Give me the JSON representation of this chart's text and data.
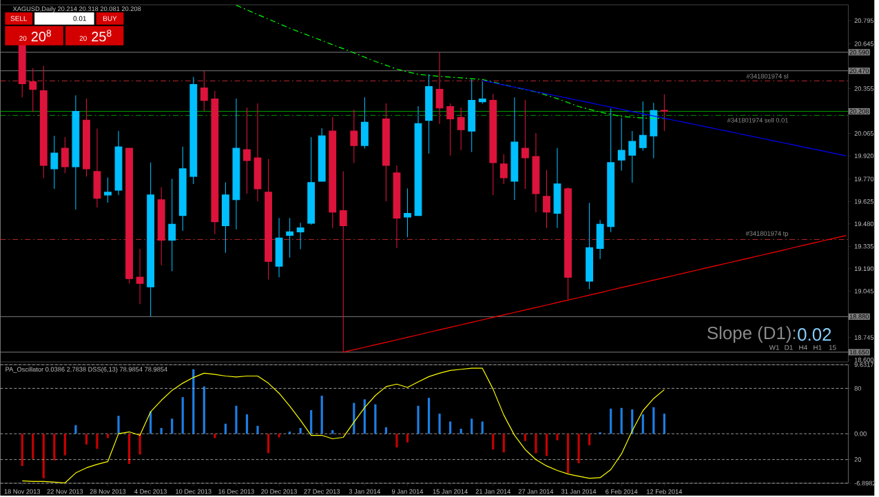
{
  "chart_data": [
    {
      "type": "candlestick",
      "title": "XAGUSD,Daily  20.214 20.318 20.081 20.208",
      "categories": [
        null,
        null,
        null,
        null,
        null,
        null,
        null,
        null,
        null,
        null,
        null,
        null,
        null,
        null,
        null,
        null,
        null,
        null,
        null,
        null,
        null,
        null,
        null,
        null,
        null,
        null,
        null,
        null,
        null,
        null,
        null,
        null,
        null,
        null,
        null,
        null,
        null,
        null,
        null,
        null,
        null,
        null,
        null,
        null,
        null,
        null,
        null,
        null,
        null,
        null,
        null,
        null,
        null,
        null,
        null,
        null,
        null,
        null,
        null,
        null,
        null,
        null,
        null,
        null,
        null,
        null,
        null,
        null,
        null,
        null,
        null,
        null,
        null,
        null,
        null,
        null,
        null,
        null
      ],
      "ohlc": [
        [
          20.64,
          20.64,
          20.298,
          20.387
        ],
        [
          20.399,
          20.488,
          20.204,
          20.35
        ],
        [
          20.341,
          20.502,
          19.777,
          19.858
        ],
        [
          19.836,
          20.05,
          19.706,
          19.938
        ],
        [
          19.969,
          20.041,
          19.808,
          19.849
        ],
        [
          19.849,
          20.312,
          19.573,
          20.208
        ],
        [
          20.151,
          20.29,
          19.786,
          19.836
        ],
        [
          19.818,
          20.097,
          19.586,
          19.645
        ],
        [
          19.667,
          19.78,
          19.617,
          19.685
        ],
        [
          19.698,
          20.081,
          19.666,
          19.978
        ],
        [
          19.969,
          19.969,
          19.094,
          19.126
        ],
        [
          19.135,
          19.318,
          18.961,
          19.095
        ],
        [
          19.073,
          19.877,
          18.881,
          19.667
        ],
        [
          19.636,
          19.718,
          19.213,
          19.375
        ],
        [
          19.375,
          19.771,
          19.174,
          19.477
        ],
        [
          19.534,
          19.979,
          19.435,
          19.836
        ],
        [
          19.787,
          20.431,
          19.737,
          20.381
        ],
        [
          20.359,
          20.47,
          20.21,
          20.279
        ],
        [
          20.288,
          20.341,
          19.413,
          19.494
        ],
        [
          19.468,
          19.749,
          19.293,
          19.667
        ],
        [
          19.636,
          20.29,
          19.444,
          19.969
        ],
        [
          19.96,
          20.232,
          19.675,
          19.889
        ],
        [
          19.907,
          20.259,
          19.626,
          19.707
        ],
        [
          19.685,
          19.899,
          19.12,
          19.237
        ],
        [
          19.206,
          19.518,
          19.135,
          19.388
        ],
        [
          19.406,
          19.518,
          19.262,
          19.428
        ],
        [
          19.428,
          19.487,
          19.316,
          19.454
        ],
        [
          19.484,
          20.041,
          19.475,
          19.747
        ],
        [
          19.756,
          20.099,
          19.756,
          20.049
        ],
        [
          20.08,
          20.17,
          19.453,
          19.556
        ],
        [
          19.565,
          19.82,
          18.65,
          19.468
        ],
        [
          20.08,
          20.219,
          19.874,
          19.987
        ],
        [
          19.987,
          20.298,
          19.967,
          20.137
        ],
        null,
        [
          20.159,
          20.259,
          19.626,
          19.858
        ],
        [
          19.809,
          19.859,
          19.323,
          19.517
        ],
        [
          19.524,
          19.709,
          19.394,
          19.548
        ],
        [
          19.534,
          20.241,
          19.534,
          20.128
        ],
        [
          20.149,
          20.449,
          19.935,
          20.368
        ],
        [
          20.35,
          20.59,
          20.127,
          20.229
        ],
        [
          20.239,
          20.259,
          19.922,
          20.159
        ],
        [
          20.168,
          20.232,
          19.957,
          20.089
        ],
        [
          20.08,
          20.414,
          19.945,
          20.279
        ],
        [
          20.27,
          20.4,
          20.257,
          20.288
        ],
        [
          20.279,
          20.321,
          19.666,
          19.876
        ],
        [
          19.867,
          19.93,
          19.737,
          19.778
        ],
        [
          19.756,
          20.298,
          19.635,
          20.009
        ],
        [
          19.969,
          20.281,
          19.706,
          19.907
        ],
        [
          19.916,
          20.068,
          19.555,
          19.676
        ],
        [
          19.658,
          19.828,
          19.453,
          19.556
        ],
        [
          19.548,
          19.97,
          19.453,
          19.738
        ],
        [
          19.707,
          19.716,
          18.992,
          19.135
        ],
        null,
        [
          19.109,
          19.616,
          19.058,
          19.326
        ],
        [
          19.321,
          19.505,
          19.253,
          19.477
        ],
        [
          19.463,
          20.227,
          19.426,
          19.876
        ],
        [
          19.893,
          20.164,
          19.825,
          19.956
        ],
        [
          19.924,
          20.081,
          19.746,
          20.013
        ],
        [
          19.973,
          20.272,
          19.954,
          20.053
        ],
        [
          20.049,
          20.263,
          19.905,
          20.213
        ],
        [
          20.214,
          20.318,
          20.081,
          20.208
        ],
        null,
        null,
        null,
        null,
        null,
        null,
        null,
        null,
        null,
        null,
        null,
        null,
        null,
        null,
        null,
        null,
        null
      ],
      "colors": [
        "#dc143c",
        "#dc143c",
        "#dc143c",
        "#00bfff",
        "#dc143c",
        "#00bfff",
        "#dc143c",
        "#dc143c",
        "#00bfff",
        "#00bfff",
        "#dc143c",
        "#dc143c",
        "#00bfff",
        "#dc143c",
        "#00bfff",
        "#00bfff",
        "#00bfff",
        "#dc143c",
        "#dc143c",
        "#00bfff",
        "#00bfff",
        "#dc143c",
        "#dc143c",
        "#dc143c",
        "#00bfff",
        "#00bfff",
        "#00bfff",
        "#00bfff",
        "#00bfff",
        "#dc143c",
        "#dc143c",
        "#dc143c",
        "#00bfff",
        null,
        "#dc143c",
        "#dc143c",
        "#00bfff",
        "#00bfff",
        "#00bfff",
        "#dc143c",
        "#dc143c",
        "#dc143c",
        "#00bfff",
        "#00bfff",
        "#dc143c",
        "#dc143c",
        "#00bfff",
        "#dc143c",
        "#dc143c",
        "#dc143c",
        "#00bfff",
        "#dc143c",
        null,
        "#00bfff",
        "#00bfff",
        "#00bfff",
        "#00bfff",
        "#00bfff",
        "#00bfff",
        "#00bfff",
        "#dc143c",
        null,
        null,
        null,
        null,
        null,
        null,
        null,
        null,
        null,
        null,
        null,
        null,
        null,
        null,
        null,
        null,
        null
      ],
      "series": [
        {
          "type": "line",
          "color": "#00ff00",
          "line_style": "dashed",
          "values": [
            null,
            null,
            null,
            null,
            null,
            null,
            null,
            null,
            null,
            null,
            null,
            null,
            null,
            null,
            null,
            null,
            null,
            null,
            null,
            null,
            20.894,
            20.864,
            20.834,
            20.805,
            20.775,
            20.745,
            20.719,
            20.692,
            20.666,
            20.639,
            20.613,
            20.586,
            20.558,
            20.531,
            20.506,
            20.481,
            20.463,
            20.448,
            20.44,
            20.434,
            20.429,
            20.425,
            20.419,
            20.414,
            20.397,
            20.38,
            20.364,
            20.349,
            20.334,
            20.312,
            20.29,
            20.265,
            20.239,
            20.221,
            20.203,
            20.189,
            20.174,
            20.17,
            20.165,
            20.163,
            20.162,
            null,
            null,
            null,
            null,
            null,
            null,
            null,
            null,
            null,
            null,
            null,
            null,
            null,
            null,
            null,
            null,
            null
          ]
        },
        {
          "type": "line",
          "color": "#0000ff",
          "values": [
            null,
            null,
            null,
            null,
            null,
            null,
            null,
            null,
            null,
            null,
            null,
            null,
            null,
            null,
            null,
            null,
            null,
            null,
            null,
            null,
            null,
            null,
            null,
            null,
            null,
            null,
            null,
            null,
            null,
            null,
            null,
            null,
            null,
            null,
            null,
            null,
            null,
            null,
            null,
            null,
            null,
            null,
            null,
            20.407,
            20.393,
            20.378,
            20.364,
            20.35,
            20.335,
            20.321,
            20.307,
            20.292,
            20.278,
            20.264,
            20.249,
            20.235,
            20.221,
            20.206,
            20.192,
            20.178,
            20.163,
            20.149,
            20.135,
            20.121,
            20.106,
            20.092,
            20.078,
            20.063,
            20.049,
            20.035,
            20.02,
            20.006,
            19.992,
            19.977,
            19.963,
            19.949,
            19.934,
            19.92
          ]
        },
        {
          "type": "line",
          "color": "#ff0000",
          "values": [
            null,
            null,
            null,
            null,
            null,
            null,
            null,
            null,
            null,
            null,
            null,
            null,
            null,
            null,
            null,
            null,
            null,
            null,
            null,
            null,
            null,
            null,
            null,
            null,
            null,
            null,
            null,
            null,
            null,
            null,
            18.65,
            18.666,
            18.682,
            18.698,
            18.714,
            18.73,
            18.746,
            18.762,
            18.779,
            18.795,
            18.811,
            18.827,
            18.843,
            18.859,
            18.875,
            18.891,
            18.907,
            18.923,
            18.939,
            18.955,
            18.971,
            18.987,
            19.003,
            19.019,
            19.035,
            19.052,
            19.068,
            19.084,
            19.1,
            19.116,
            19.132,
            19.148,
            19.164,
            19.18,
            19.196,
            19.212,
            19.228,
            19.244,
            19.26,
            19.276,
            19.292,
            19.308,
            19.325,
            19.341,
            19.357,
            19.373,
            19.389,
            19.405
          ]
        }
      ],
      "ylim": [
        18.587,
        20.897
      ],
      "yticks": [
        20.795,
        20.645,
        20.355,
        20.065,
        {
          "value": 19.92,
          "label": "19.920"
        },
        {
          "value": 19.77,
          "label": "19.770"
        },
        19.625,
        {
          "value": 19.48,
          "label": "19.480"
        },
        19.335,
        {
          "value": 19.19,
          "label": "19.190"
        },
        19.045,
        18.745,
        {
          "value": 18.6,
          "label": "18.600"
        }
      ],
      "tick_labels": "y",
      "ref_lines": [
        {
          "axis": "y",
          "value": 20.59,
          "label": "20.590",
          "color": "#808080"
        },
        {
          "axis": "y",
          "value": 20.47,
          "label": "20.470",
          "color": "#808080"
        },
        {
          "axis": "y",
          "value": 20.208,
          "label": "20.208",
          "color": "#00a000"
        },
        {
          "axis": "y",
          "value": 18.88,
          "label": "18.880",
          "color": "#808080"
        },
        {
          "axis": "y",
          "value": 18.65,
          "label": "18.650",
          "color": "#808080"
        },
        {
          "axis": "y",
          "value": 20.405,
          "label": "#341801974 sl",
          "color": "#c0282d",
          "line_style": "dashed"
        },
        {
          "axis": "y",
          "value": 20.182,
          "label": "#341801974 sell 0.01",
          "color": "#00a000",
          "line_style": "dashed"
        },
        {
          "axis": "y",
          "value": 19.379,
          "label": "#341801974 tp",
          "color": "#c0282d",
          "line_style": "dashed"
        }
      ],
      "annotations": [
        "Slope (D1):",
        "0.02",
        "W1",
        "D1",
        "H4",
        "H1",
        "15",
        "SELL",
        "0.01",
        "BUY",
        "20",
        "20$^{8}$",
        "20",
        "25$^{8}$"
      ]
    },
    {
      "type": "bar",
      "title": "PA_Oscillator 0.0386 2.7838  DSS(6,13) 78.9854 78.9854",
      "categories": [
        "18 Nov 2013",
        null,
        null,
        null,
        "22 Nov 2013",
        null,
        null,
        null,
        "28 Nov 2013",
        null,
        null,
        null,
        "4 Dec 2013",
        null,
        null,
        null,
        "10 Dec 2013",
        null,
        null,
        null,
        "16 Dec 2013",
        null,
        null,
        null,
        "20 Dec 2013",
        null,
        null,
        null,
        "27 Dec 2013",
        null,
        null,
        null,
        "3 Jan 2014",
        null,
        null,
        null,
        "9 Jan 2014",
        null,
        null,
        null,
        "15 Jan 2014",
        null,
        null,
        null,
        "21 Jan 2014",
        null,
        null,
        null,
        "27 Jan 2014",
        null,
        null,
        null,
        "31 Jan 2014",
        null,
        null,
        null,
        "6 Feb 2014",
        null,
        null,
        null,
        "12 Feb 2014",
        null,
        null,
        null,
        null,
        null,
        null,
        null,
        null,
        null,
        null,
        null,
        null,
        null,
        null,
        null,
        null,
        null
      ],
      "values": [
        -4.5,
        -3.5,
        -6.2,
        -3.7,
        -3.0,
        1.2,
        -1.5,
        -2.1,
        -0.6,
        2.5,
        -4.2,
        -2.9,
        3.1,
        0.8,
        2.1,
        5.1,
        9.0,
        6.6,
        -0.6,
        1.4,
        3.9,
        2.7,
        1.1,
        -2.7,
        -0.5,
        0.3,
        0.8,
        3.3,
        5.3,
        0.5,
        -0.1,
        4.3,
        4.8,
        4.1,
        0.9,
        -1.9,
        -1.2,
        3.9,
        5.0,
        2.8,
        1.7,
        0.7,
        2.1,
        1.7,
        -2.2,
        -2.6,
        null,
        -1.0,
        -2.7,
        -3.1,
        -0.9,
        -5.5,
        -4.1,
        -1.6,
        0.2,
        3.5,
        3.6,
        3.4,
        2.7,
        3.7,
        2.8,
        null,
        null,
        null,
        null,
        null,
        null,
        null,
        null,
        null,
        null,
        null,
        null,
        null,
        null,
        null,
        null,
        null
      ],
      "colors": [
        "#c80000",
        "#c80000",
        "#c80000",
        "#c80000",
        "#c80000",
        "#1c7fe6",
        "#c80000",
        "#c80000",
        "#c80000",
        "#1c7fe6",
        "#c80000",
        "#c80000",
        "#1c7fe6",
        "#1c7fe6",
        "#1c7fe6",
        "#1c7fe6",
        "#1c7fe6",
        "#1c7fe6",
        "#c80000",
        "#1c7fe6",
        "#1c7fe6",
        "#1c7fe6",
        "#1c7fe6",
        "#c80000",
        "#c80000",
        "#1c7fe6",
        "#1c7fe6",
        "#1c7fe6",
        "#1c7fe6",
        "#1c7fe6",
        "#c80000",
        "#1c7fe6",
        "#1c7fe6",
        "#1c7fe6",
        "#1c7fe6",
        "#c80000",
        "#c80000",
        "#1c7fe6",
        "#1c7fe6",
        "#1c7fe6",
        "#1c7fe6",
        "#1c7fe6",
        "#1c7fe6",
        "#1c7fe6",
        "#c80000",
        "#c80000",
        null,
        "#c80000",
        "#c80000",
        "#c80000",
        "#c80000",
        "#c80000",
        "#c80000",
        "#c80000",
        "#1c7fe6",
        "#1c7fe6",
        "#1c7fe6",
        "#1c7fe6",
        "#1c7fe6",
        "#1c7fe6",
        "#1c7fe6",
        null,
        null,
        null,
        null,
        null,
        null,
        null,
        null,
        null,
        null,
        null,
        null,
        null,
        null,
        null,
        null,
        null
      ],
      "series": [
        {
          "type": "line",
          "axis": "y2",
          "color": "#ffff00",
          "values": [
            2.0,
            1.5,
            1.5,
            1.0,
            0.3,
            8.7,
            13.0,
            15.9,
            18.3,
            41.8,
            43.3,
            40.4,
            60.3,
            69.9,
            78.3,
            84.4,
            89.2,
            92.8,
            91.8,
            90.4,
            89.6,
            90.4,
            90.4,
            84.4,
            75.9,
            65.1,
            53.1,
            40.4,
            40.4,
            37.5,
            38.7,
            51.5,
            63.9,
            74.0,
            81.5,
            83.6,
            80.8,
            85.5,
            89.9,
            92.8,
            95.1,
            96.1,
            97.0,
            97.0,
            79.3,
            57.5,
            40.5,
            28.4,
            19.9,
            14.6,
            10.8,
            7.8,
            5.9,
            4.2,
            4.7,
            11.5,
            24.8,
            44.2,
            61.2,
            71.4,
            79.0,
            null,
            null,
            null,
            null,
            null,
            null,
            null,
            null,
            null,
            null,
            null,
            null,
            null,
            null,
            null,
            null,
            null
          ]
        }
      ],
      "ylim": [
        -6.8982,
        9.6317
      ],
      "yticks": [
        9.6317,
        {
          "value": 0,
          "label": "0.00"
        },
        -6.8982
      ],
      "y2lim": [
        0,
        100
      ],
      "y2ticks": [
        80,
        20
      ],
      "grid": "y"
    }
  ]
}
